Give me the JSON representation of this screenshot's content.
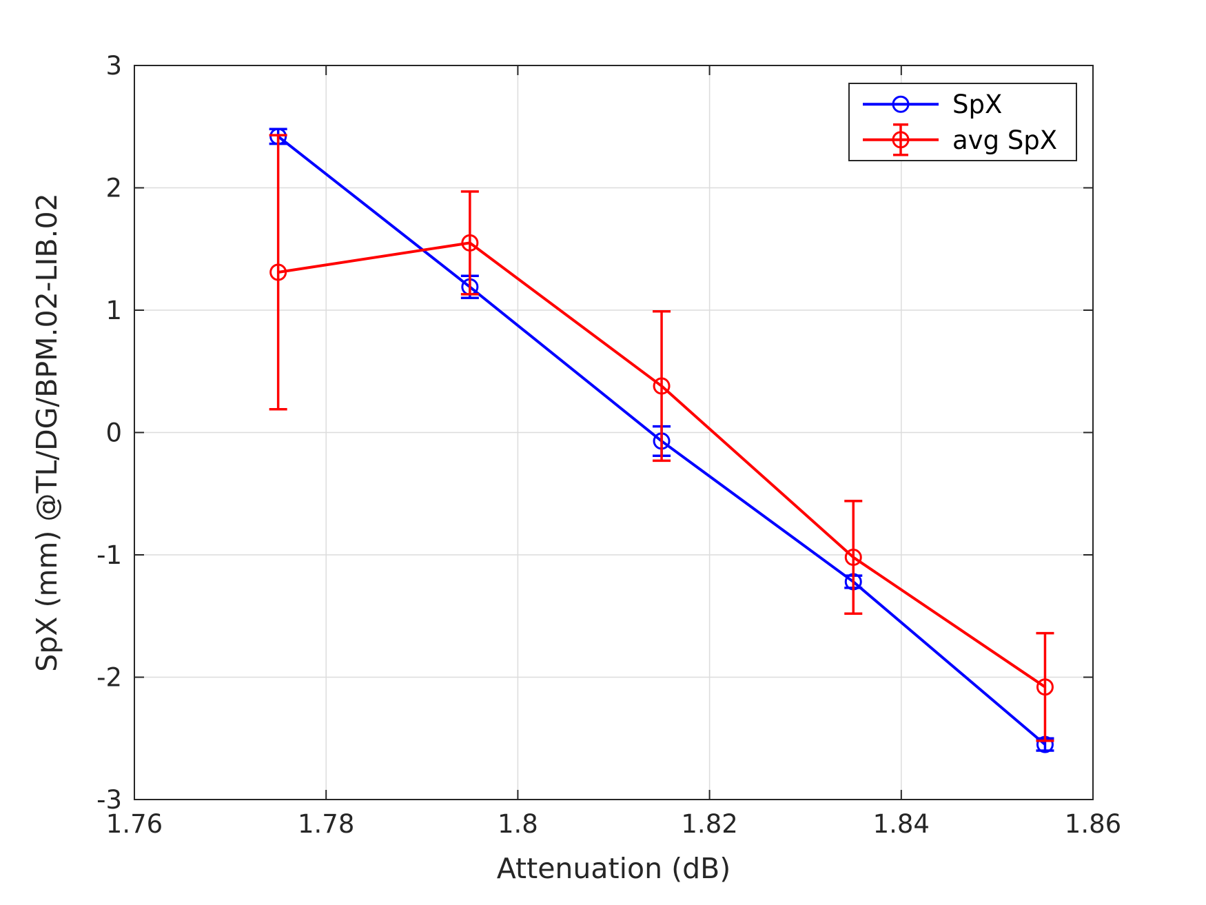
{
  "figure": {
    "background": "#ffffff"
  },
  "chart_data": {
    "type": "line",
    "xlabel": "Attenuation (dB)",
    "ylabel": "SpX (mm) @TL/DG/BPM.02-LIB.02",
    "xlim": [
      1.76,
      1.86
    ],
    "ylim": [
      -3,
      3
    ],
    "xticks": [
      1.76,
      1.78,
      1.8,
      1.82,
      1.84,
      1.86
    ],
    "xtick_labels": [
      "1.76",
      "1.78",
      "1.8",
      "1.82",
      "1.84",
      "1.86"
    ],
    "yticks": [
      -3,
      -2,
      -1,
      0,
      1,
      2,
      3
    ],
    "ytick_labels": [
      "-3",
      "-2",
      "-1",
      "0",
      "1",
      "2",
      "3"
    ],
    "grid": true,
    "grid_color": "#dcdcdc",
    "axis_color": "#262626",
    "x": [
      1.775,
      1.795,
      1.815,
      1.835,
      1.855
    ],
    "series": [
      {
        "name": "SpX",
        "color": "#0000ff",
        "y": [
          2.42,
          1.19,
          -0.07,
          -1.22,
          -2.55
        ],
        "yerr": [
          0.06,
          0.09,
          0.12,
          0.05,
          0.05
        ]
      },
      {
        "name": "avg SpX",
        "color": "#ff0000",
        "y": [
          1.31,
          1.55,
          0.38,
          -1.02,
          -2.08
        ],
        "yerr": [
          1.12,
          0.42,
          0.61,
          0.46,
          0.44
        ]
      }
    ],
    "legend": {
      "position": "top-right",
      "entries": [
        {
          "label": "SpX",
          "color": "#0000ff",
          "marker": "circle"
        },
        {
          "label": "avg SpX",
          "color": "#ff0000",
          "marker": "errorbar-circle"
        }
      ]
    }
  }
}
